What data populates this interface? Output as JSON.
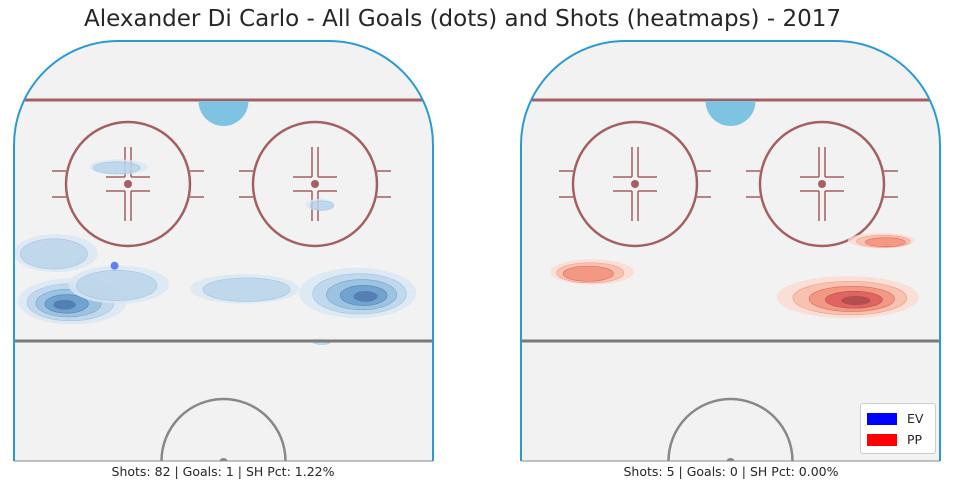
{
  "title": "Alexander Di Carlo - All Goals (dots) and Shots (heatmaps) - 2017",
  "colors": {
    "ice": "#f2f2f2",
    "boards": "#2b9ad0",
    "goal_line": "#a36063",
    "blue_line": "#7a7a7a",
    "center_circle": "#888888",
    "crease": "#7ec4e2",
    "ev": "#0000ff",
    "pp": "#ff0000"
  },
  "chart_data": [
    {
      "type": "heatmap",
      "panel": "left",
      "caption": "Shots: 82 | Goals: 1 | SH Pct: 1.22%",
      "shots": 82,
      "goals": 1,
      "sh_pct": "1.22%",
      "strength": "EV",
      "palette": "blues",
      "goals_dots": [
        {
          "x": 0.24,
          "y": 0.535
        }
      ],
      "shot_density_blobs": [
        {
          "cx": 0.14,
          "cy": 0.62,
          "rx": 0.13,
          "ry": 0.055,
          "level": 4
        },
        {
          "cx": 0.1,
          "cy": 0.505,
          "rx": 0.1,
          "ry": 0.045,
          "level": 1
        },
        {
          "cx": 0.25,
          "cy": 0.58,
          "rx": 0.12,
          "ry": 0.045,
          "level": 1
        },
        {
          "cx": 0.82,
          "cy": 0.6,
          "rx": 0.14,
          "ry": 0.06,
          "level": 4
        },
        {
          "cx": 0.55,
          "cy": 0.59,
          "rx": 0.13,
          "ry": 0.035,
          "level": 1
        },
        {
          "cx": 0.25,
          "cy": 0.3,
          "rx": 0.07,
          "ry": 0.018,
          "level": 1
        },
        {
          "cx": 0.73,
          "cy": 0.39,
          "rx": 0.035,
          "ry": 0.014,
          "level": 1
        },
        {
          "cx": 0.73,
          "cy": 0.715,
          "rx": 0.025,
          "ry": 0.007,
          "level": 1
        }
      ]
    },
    {
      "type": "heatmap",
      "panel": "right",
      "caption": "Shots: 5 | Goals: 0 | SH Pct: 0.00%",
      "shots": 5,
      "goals": 0,
      "sh_pct": "0.00%",
      "strength": "PP",
      "palette": "reds",
      "goals_dots": [],
      "shot_density_blobs": [
        {
          "cx": 0.78,
          "cy": 0.61,
          "rx": 0.17,
          "ry": 0.05,
          "level": 4
        },
        {
          "cx": 0.17,
          "cy": 0.55,
          "rx": 0.1,
          "ry": 0.03,
          "level": 2
        },
        {
          "cx": 0.86,
          "cy": 0.475,
          "rx": 0.08,
          "ry": 0.018,
          "level": 2
        }
      ]
    }
  ],
  "legend": {
    "placement": "bottom-right",
    "items": [
      {
        "label": "EV",
        "color": "#0000ff"
      },
      {
        "label": "PP",
        "color": "#ff0000"
      }
    ]
  }
}
